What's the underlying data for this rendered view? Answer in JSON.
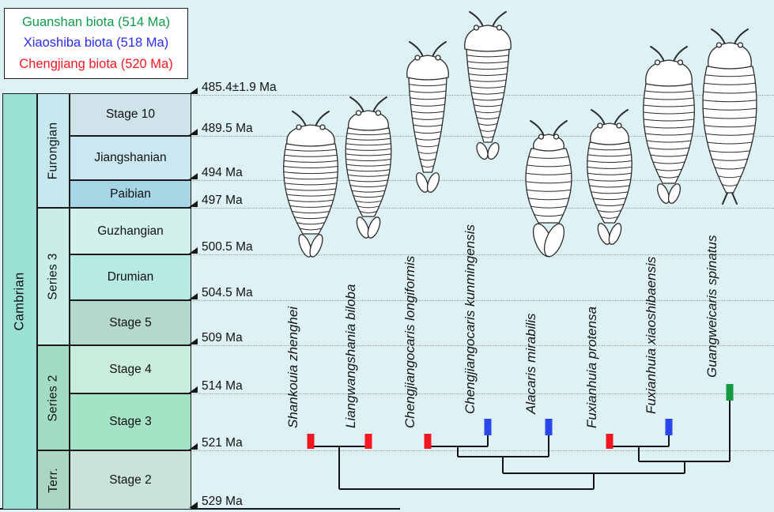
{
  "legend": {
    "items": [
      {
        "label": "Guanshan biota (514 Ma)",
        "color": "#0e9b4c"
      },
      {
        "label": "Xiaoshiba biota (518 Ma)",
        "color": "#2b2bf0"
      },
      {
        "label": "Chengjiang biota (520 Ma)",
        "color": "#f51720"
      }
    ]
  },
  "column": {
    "period": {
      "label": "Cambrian",
      "color": "#9ae0d3"
    },
    "series": [
      {
        "label": "Furongian",
        "color": "#c6e9f0"
      },
      {
        "label": "Series 3",
        "color": "#c9eee8"
      },
      {
        "label": "Series 2",
        "color": "#a2dcc4"
      },
      {
        "label": "Terr.",
        "color": "#abd5c3"
      }
    ],
    "stages": [
      {
        "label": "Stage 10",
        "color": "#cfe3ea"
      },
      {
        "label": "Jiangshanian",
        "color": "#cbe8f2"
      },
      {
        "label": "Paibian",
        "color": "#a6d6e5"
      },
      {
        "label": "Guzhangian",
        "color": "#d3f1eb"
      },
      {
        "label": "Drumian",
        "color": "#b6e9e1"
      },
      {
        "label": "Stage 5",
        "color": "#b5d8ce"
      },
      {
        "label": "Stage 4",
        "color": "#c9eedd"
      },
      {
        "label": "Stage 3",
        "color": "#a4e3c6"
      },
      {
        "label": "Stage 2",
        "color": "#c9e3d9"
      }
    ]
  },
  "timeline": {
    "ages": [
      "485.4±1.9 Ma",
      "489.5 Ma",
      "494 Ma",
      "497 Ma",
      "500.5 Ma",
      "504.5 Ma",
      "509 Ma",
      "514 Ma",
      "521 Ma",
      "529 Ma"
    ]
  },
  "taxa": [
    {
      "name": "Shankouia zhenghei",
      "biota": "Chengjiang"
    },
    {
      "name": "Liangwangshania biloba",
      "biota": "Chengjiang"
    },
    {
      "name": "Chengjiangocaris longiformis",
      "biota": "Chengjiang"
    },
    {
      "name": "Chengjiangocaris kunmingensis",
      "biota": "Xiaoshiba"
    },
    {
      "name": "Alacaris mirabilis",
      "biota": "Xiaoshiba"
    },
    {
      "name": "Fuxianhuia protensa",
      "biota": "Chengjiang"
    },
    {
      "name": "Fuxianhuia xiaoshibaensis",
      "biota": "Xiaoshiba"
    },
    {
      "name": "Guangweicaris spinatus",
      "biota": "Guanshan"
    }
  ],
  "biota_colors": {
    "Chengjiang": "#f51720",
    "Xiaoshiba": "#2b46ee",
    "Guanshan": "#159a43"
  },
  "phylogeny_newick": "((Shankouia zhenghei, Liangwangshania biloba), (((Chengjiangocaris longiformis, Chengjiangocaris kunmingensis), Alacaris mirabilis), ((Fuxianhuia protensa, Fuxianhuia xiaoshibaensis), Guangweicaris spinatus)))"
}
